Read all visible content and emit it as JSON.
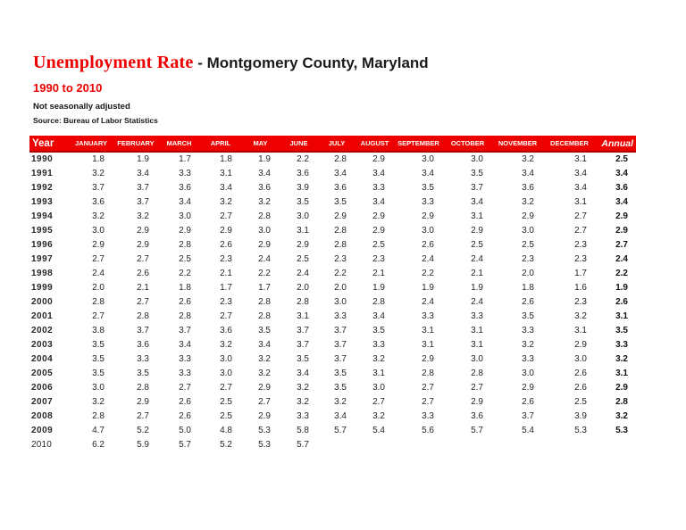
{
  "header": {
    "title_accent": "Unemployment Rate",
    "title_rest": " - Montgomery County, Maryland",
    "subtitle": "1990 to 2010",
    "note": "Not seasonally adjusted",
    "source": "Source: Bureau of Labor Statistics"
  },
  "colors": {
    "accent_red": "#ee0000",
    "header_border_red": "#aa0000",
    "header_text": "#ffffff"
  },
  "table": {
    "year_header": "Year",
    "month_headers": [
      "JANUARY",
      "FEBRUARY",
      "MARCH",
      "APRIL",
      "MAY",
      "JUNE",
      "JULY",
      "AUGUST",
      "SEPTEMBER",
      "OCTOBER",
      "NOVEMBER",
      "DECEMBER"
    ],
    "annual_header": "Annual",
    "rows": [
      {
        "year": "1990",
        "months": [
          "1.8",
          "1.9",
          "1.7",
          "1.8",
          "1.9",
          "2.2",
          "2.8",
          "2.9",
          "3.0",
          "3.0",
          "3.2",
          "3.1"
        ],
        "annual": "2.5"
      },
      {
        "year": "1991",
        "months": [
          "3.2",
          "3.4",
          "3.3",
          "3.1",
          "3.4",
          "3.6",
          "3.4",
          "3.4",
          "3.4",
          "3.5",
          "3.4",
          "3.4"
        ],
        "annual": "3.4"
      },
      {
        "year": "1992",
        "months": [
          "3.7",
          "3.7",
          "3.6",
          "3.4",
          "3.6",
          "3.9",
          "3.6",
          "3.3",
          "3.5",
          "3.7",
          "3.6",
          "3.4"
        ],
        "annual": "3.6"
      },
      {
        "year": "1993",
        "months": [
          "3.6",
          "3.7",
          "3.4",
          "3.2",
          "3.2",
          "3.5",
          "3.5",
          "3.4",
          "3.3",
          "3.4",
          "3.2",
          "3.1"
        ],
        "annual": "3.4"
      },
      {
        "year": "1994",
        "months": [
          "3.2",
          "3.2",
          "3.0",
          "2.7",
          "2.8",
          "3.0",
          "2.9",
          "2.9",
          "2.9",
          "3.1",
          "2.9",
          "2.7"
        ],
        "annual": "2.9"
      },
      {
        "year": "1995",
        "months": [
          "3.0",
          "2.9",
          "2.9",
          "2.9",
          "3.0",
          "3.1",
          "2.8",
          "2.9",
          "3.0",
          "2.9",
          "3.0",
          "2.7"
        ],
        "annual": "2.9"
      },
      {
        "year": "1996",
        "months": [
          "2.9",
          "2.9",
          "2.8",
          "2.6",
          "2.9",
          "2.9",
          "2.8",
          "2.5",
          "2.6",
          "2.5",
          "2.5",
          "2.3"
        ],
        "annual": "2.7"
      },
      {
        "year": "1997",
        "months": [
          "2.7",
          "2.7",
          "2.5",
          "2.3",
          "2.4",
          "2.5",
          "2.3",
          "2.3",
          "2.4",
          "2.4",
          "2.3",
          "2.3"
        ],
        "annual": "2.4"
      },
      {
        "year": "1998",
        "months": [
          "2.4",
          "2.6",
          "2.2",
          "2.1",
          "2.2",
          "2.4",
          "2.2",
          "2.1",
          "2.2",
          "2.1",
          "2.0",
          "1.7"
        ],
        "annual": "2.2"
      },
      {
        "year": "1999",
        "months": [
          "2.0",
          "2.1",
          "1.8",
          "1.7",
          "1.7",
          "2.0",
          "2.0",
          "1.9",
          "1.9",
          "1.9",
          "1.8",
          "1.6"
        ],
        "annual": "1.9"
      },
      {
        "year": "2000",
        "months": [
          "2.8",
          "2.7",
          "2.6",
          "2.3",
          "2.8",
          "2.8",
          "3.0",
          "2.8",
          "2.4",
          "2.4",
          "2.6",
          "2.3"
        ],
        "annual": "2.6"
      },
      {
        "year": "2001",
        "months": [
          "2.7",
          "2.8",
          "2.8",
          "2.7",
          "2.8",
          "3.1",
          "3.3",
          "3.4",
          "3.3",
          "3.3",
          "3.5",
          "3.2"
        ],
        "annual": "3.1"
      },
      {
        "year": "2002",
        "months": [
          "3.8",
          "3.7",
          "3.7",
          "3.6",
          "3.5",
          "3.7",
          "3.7",
          "3.5",
          "3.1",
          "3.1",
          "3.3",
          "3.1"
        ],
        "annual": "3.5"
      },
      {
        "year": "2003",
        "months": [
          "3.5",
          "3.6",
          "3.4",
          "3.2",
          "3.4",
          "3.7",
          "3.7",
          "3.3",
          "3.1",
          "3.1",
          "3.2",
          "2.9"
        ],
        "annual": "3.3"
      },
      {
        "year": "2004",
        "months": [
          "3.5",
          "3.3",
          "3.3",
          "3.0",
          "3.2",
          "3.5",
          "3.7",
          "3.2",
          "2.9",
          "3.0",
          "3.3",
          "3.0"
        ],
        "annual": "3.2"
      },
      {
        "year": "2005",
        "months": [
          "3.5",
          "3.5",
          "3.3",
          "3.0",
          "3.2",
          "3.4",
          "3.5",
          "3.1",
          "2.8",
          "2.8",
          "3.0",
          "2.6"
        ],
        "annual": "3.1"
      },
      {
        "year": "2006",
        "months": [
          "3.0",
          "2.8",
          "2.7",
          "2.7",
          "2.9",
          "3.2",
          "3.5",
          "3.0",
          "2.7",
          "2.7",
          "2.9",
          "2.6"
        ],
        "annual": "2.9"
      },
      {
        "year": "2007",
        "months": [
          "3.2",
          "2.9",
          "2.6",
          "2.5",
          "2.7",
          "3.2",
          "3.2",
          "2.7",
          "2.7",
          "2.9",
          "2.6",
          "2.5"
        ],
        "annual": "2.8"
      },
      {
        "year": "2008",
        "months": [
          "2.8",
          "2.7",
          "2.6",
          "2.5",
          "2.9",
          "3.3",
          "3.4",
          "3.2",
          "3.3",
          "3.6",
          "3.7",
          "3.9"
        ],
        "annual": "3.2"
      },
      {
        "year": "2009",
        "months": [
          "4.7",
          "5.2",
          "5.0",
          "4.8",
          "5.3",
          "5.8",
          "5.7",
          "5.4",
          "5.6",
          "5.7",
          "5.4",
          "5.3"
        ],
        "annual": "5.3"
      },
      {
        "year": "2010",
        "months": [
          "6.2",
          "5.9",
          "5.7",
          "5.2",
          "5.3",
          "5.7",
          "",
          "",
          "",
          "",
          "",
          ""
        ],
        "annual": ""
      }
    ]
  }
}
